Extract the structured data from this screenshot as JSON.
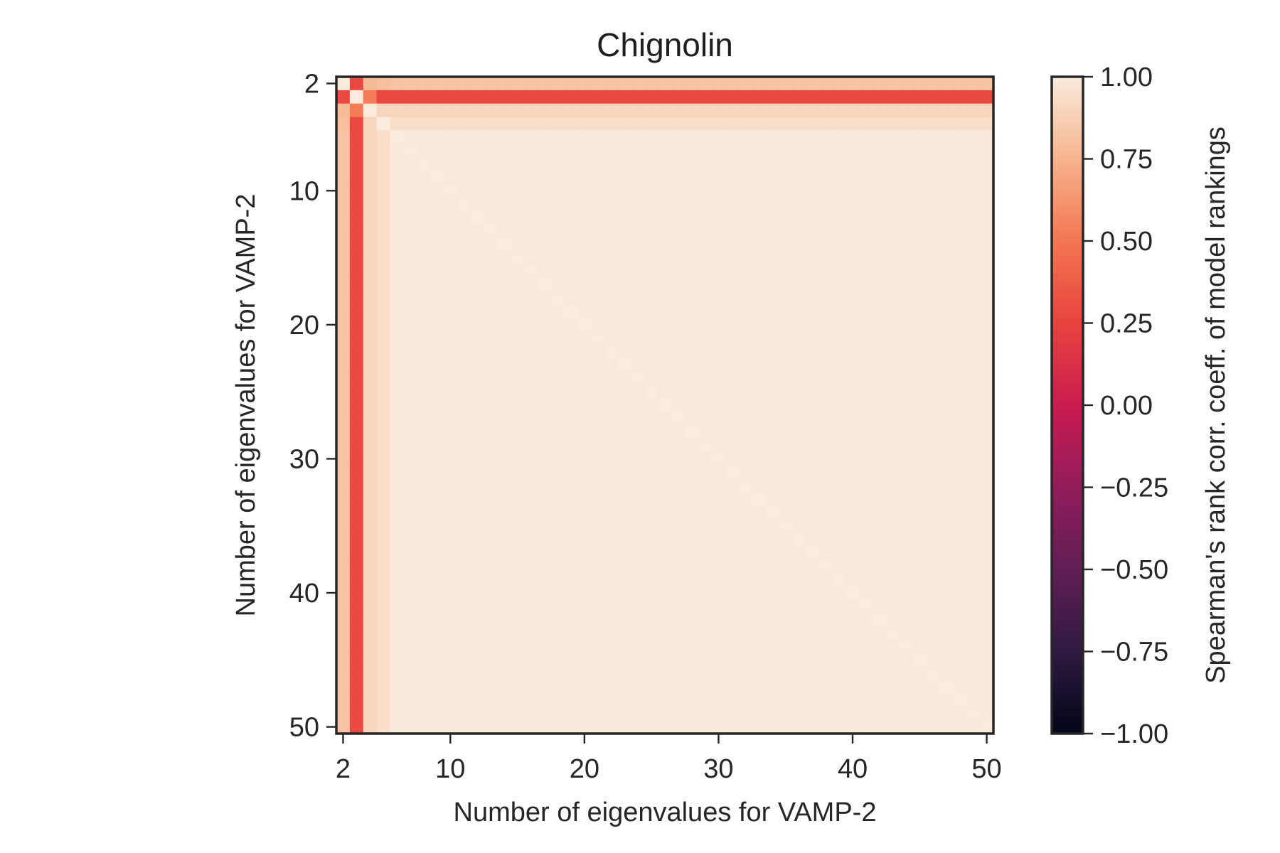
{
  "chart_data": {
    "type": "heatmap",
    "title": "Chignolin",
    "xlabel": "Number of eigenvalues for VAMP-2",
    "ylabel": "Number of eigenvalues for VAMP-2",
    "n_min": 2,
    "n_max": 50,
    "x_ticks": [
      2,
      10,
      20,
      30,
      40,
      50
    ],
    "y_ticks": [
      2,
      10,
      20,
      30,
      40,
      50
    ],
    "x_tick_labels": [
      "2",
      "10",
      "20",
      "30",
      "40",
      "50"
    ],
    "y_tick_labels": [
      "2",
      "10",
      "20",
      "30",
      "40",
      "50"
    ],
    "y_inverted": true,
    "colormap": "rocket",
    "colormap_stops": [
      {
        "value": -1.0,
        "color": "#03051a"
      },
      {
        "value": -0.75,
        "color": "#2f1a3f"
      },
      {
        "value": -0.5,
        "color": "#611f53"
      },
      {
        "value": -0.25,
        "color": "#921c5b"
      },
      {
        "value": 0.0,
        "color": "#cb1b4f"
      },
      {
        "value": 0.25,
        "color": "#e8433e"
      },
      {
        "value": 0.5,
        "color": "#f37651"
      },
      {
        "value": 0.75,
        "color": "#f6b48e"
      },
      {
        "value": 1.0,
        "color": "#faebdd"
      }
    ],
    "colorbar": {
      "label": "Spearman's rank corr. coeff. of model rankings",
      "vmin": -1.0,
      "vmax": 1.0,
      "ticks": [
        1.0,
        0.75,
        0.5,
        0.25,
        0.0,
        -0.25,
        -0.5,
        -0.75,
        -1.0
      ],
      "tick_labels": [
        "1.00",
        "0.75",
        "0.50",
        "0.25",
        "0.00",
        "−0.25",
        "−0.50",
        "−0.75",
        "−1.00"
      ]
    },
    "matrix_description": {
      "diagonal": 1.0,
      "n3_row_col_value": 0.28,
      "n2_with_n4": 0.78,
      "n2_with_n5": 0.8,
      "n2_with_high_n": 0.82,
      "n4_with_high_n": 0.9,
      "n5_with_high_n": 0.94,
      "high_n_with_high_n": 0.99,
      "n3_with_n4": 0.52
    },
    "grid": false,
    "legend": "colorbar-right"
  }
}
